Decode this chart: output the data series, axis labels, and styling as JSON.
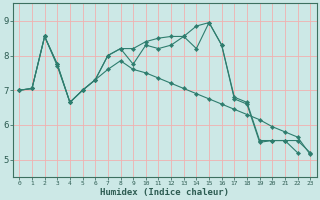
{
  "xlabel": "Humidex (Indice chaleur)",
  "bg_color": "#cce8e6",
  "grid_color": "#f0b0b0",
  "line_color": "#2e7d6e",
  "xlim": [
    -0.5,
    23.5
  ],
  "ylim": [
    4.5,
    9.5
  ],
  "xticks": [
    0,
    1,
    2,
    3,
    4,
    5,
    6,
    7,
    8,
    9,
    10,
    11,
    12,
    13,
    14,
    15,
    16,
    17,
    18,
    19,
    20,
    21,
    22,
    23
  ],
  "yticks": [
    5,
    6,
    7,
    8,
    9
  ],
  "s1_x": [
    0,
    1,
    2,
    3,
    4,
    5,
    6,
    7,
    8,
    9,
    10,
    11,
    12,
    13,
    14,
    15,
    16,
    17,
    18,
    19,
    20,
    21,
    22
  ],
  "s1_y": [
    7.0,
    7.05,
    8.55,
    7.75,
    6.65,
    7.0,
    7.3,
    8.0,
    8.2,
    7.75,
    8.3,
    8.2,
    8.3,
    8.55,
    8.2,
    8.95,
    8.3,
    6.8,
    6.65,
    5.55,
    5.55,
    5.55,
    5.2
  ],
  "s2_x": [
    0,
    1,
    2,
    3,
    4,
    5,
    6,
    7,
    8,
    9,
    10,
    11,
    12,
    13,
    14,
    15,
    16,
    17,
    18,
    19,
    20,
    21,
    22,
    23
  ],
  "s2_y": [
    7.0,
    7.05,
    8.55,
    7.75,
    6.65,
    7.0,
    7.3,
    8.0,
    8.2,
    8.2,
    8.4,
    8.5,
    8.55,
    8.55,
    8.85,
    8.95,
    8.3,
    6.75,
    6.6,
    5.5,
    5.55,
    5.55,
    5.55,
    5.2
  ],
  "s3_x": [
    0,
    1,
    2,
    3,
    4,
    5,
    6,
    7,
    8,
    9,
    10,
    11,
    12,
    13,
    14,
    15,
    16,
    17,
    18,
    19,
    20,
    21,
    22,
    23
  ],
  "s3_y": [
    7.0,
    7.05,
    8.55,
    7.7,
    6.65,
    7.0,
    7.3,
    7.6,
    7.85,
    7.6,
    7.5,
    7.35,
    7.2,
    7.05,
    6.9,
    6.75,
    6.6,
    6.45,
    6.3,
    6.15,
    5.95,
    5.8,
    5.65,
    5.15
  ],
  "font_color": "#2d5c52"
}
